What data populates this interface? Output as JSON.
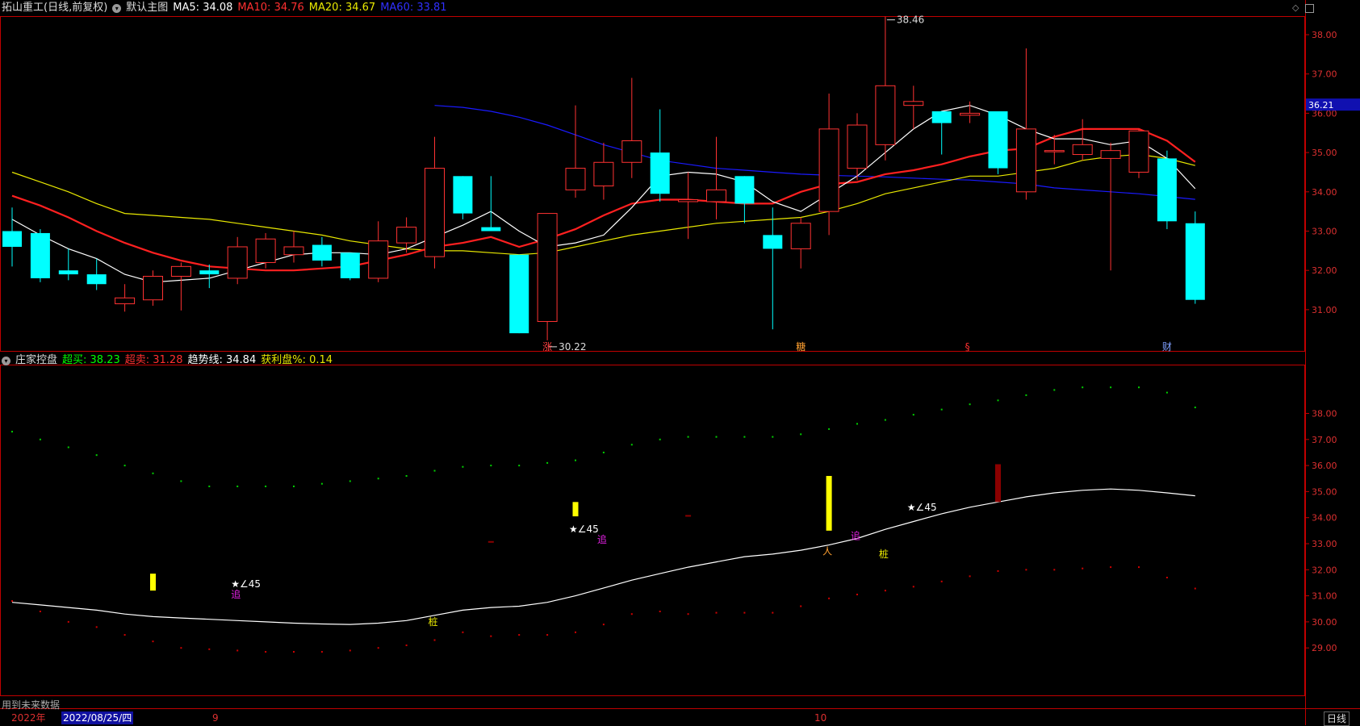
{
  "main_header": {
    "stock_title": "拓山重工(日线,前复权)",
    "overlay_name": "默认主图",
    "ma5": "MA5: 34.08",
    "ma10": "MA10: 34.76",
    "ma20": "MA20: 34.67",
    "ma60": "MA60: 33.81"
  },
  "sub_header": {
    "indicator_name": "庄家控盘",
    "overbuy": "超买: 38.23",
    "oversell": "超卖: 31.28",
    "trend": "趋势线: 34.84",
    "profit": "获利盘%: 0.14"
  },
  "colors": {
    "up": "#ff3232",
    "down": "#00ffff",
    "ma5": "#ffffff",
    "ma10": "#ff2020",
    "ma20": "#e8e800",
    "ma60": "#1a1aff",
    "frame": "#c00000",
    "axis_text": "#dd3030"
  },
  "price_axis": {
    "ticks": [
      "38.00",
      "37.00",
      "36.00",
      "35.00",
      "34.00",
      "33.00",
      "32.00",
      "31.00"
    ],
    "current_price": "36.21"
  },
  "sub_axis": {
    "ticks": [
      "38.00",
      "37.00",
      "36.00",
      "35.00",
      "34.00",
      "33.00",
      "32.00",
      "31.00",
      "30.00",
      "29.00"
    ]
  },
  "annotations": {
    "high_label": "38.46",
    "low_label": "30.22"
  },
  "event_markers": [
    "涨",
    "糖",
    "§",
    "财"
  ],
  "signal_labels": {
    "star": "★∠45",
    "chase": "追",
    "pile": "桩"
  },
  "bottom_bar": {
    "future_data_note": "用到未来数据",
    "year_label": "2022年",
    "cursor_date": "2022/08/25/四",
    "month_9": "9",
    "month_10": "10",
    "period_button": "日线"
  },
  "chart_data": {
    "type": "candlestick",
    "candles": [
      {
        "o": 33.0,
        "h": 33.6,
        "l": 32.1,
        "c": 32.6
      },
      {
        "o": 32.95,
        "h": 33.05,
        "l": 31.7,
        "c": 31.8
      },
      {
        "o": 32.0,
        "h": 32.55,
        "l": 31.75,
        "c": 31.9
      },
      {
        "o": 31.9,
        "h": 32.3,
        "l": 31.5,
        "c": 31.65
      },
      {
        "o": 31.15,
        "h": 31.65,
        "l": 30.95,
        "c": 31.3
      },
      {
        "o": 31.25,
        "h": 32.0,
        "l": 31.1,
        "c": 31.85
      },
      {
        "o": 31.85,
        "h": 32.2,
        "l": 30.98,
        "c": 32.1
      },
      {
        "o": 32.0,
        "h": 32.15,
        "l": 31.55,
        "c": 31.9
      },
      {
        "o": 31.8,
        "h": 32.85,
        "l": 31.65,
        "c": 32.6
      },
      {
        "o": 32.2,
        "h": 32.95,
        "l": 32.05,
        "c": 32.8
      },
      {
        "o": 32.4,
        "h": 33.0,
        "l": 32.2,
        "c": 32.6
      },
      {
        "o": 32.65,
        "h": 32.85,
        "l": 32.1,
        "c": 32.25
      },
      {
        "o": 32.45,
        "h": 32.45,
        "l": 31.75,
        "c": 31.8
      },
      {
        "o": 31.8,
        "h": 33.25,
        "l": 31.7,
        "c": 32.75
      },
      {
        "o": 32.7,
        "h": 33.35,
        "l": 32.45,
        "c": 33.1
      },
      {
        "o": 32.35,
        "h": 35.4,
        "l": 32.05,
        "c": 34.6
      },
      {
        "o": 34.4,
        "h": 34.4,
        "l": 33.3,
        "c": 33.45
      },
      {
        "o": 33.1,
        "h": 34.4,
        "l": 33.0,
        "c": 33.0
      },
      {
        "o": 32.4,
        "h": 32.4,
        "l": 30.4,
        "c": 30.4
      },
      {
        "o": 30.7,
        "h": 33.45,
        "l": 30.22,
        "c": 33.45
      },
      {
        "o": 34.05,
        "h": 36.2,
        "l": 33.85,
        "c": 34.6
      },
      {
        "o": 34.15,
        "h": 35.25,
        "l": 33.8,
        "c": 34.75
      },
      {
        "o": 34.75,
        "h": 36.9,
        "l": 34.35,
        "c": 35.3
      },
      {
        "o": 35.0,
        "h": 36.1,
        "l": 33.75,
        "c": 33.95
      },
      {
        "o": 33.75,
        "h": 34.5,
        "l": 32.8,
        "c": 33.8
      },
      {
        "o": 33.75,
        "h": 35.4,
        "l": 33.3,
        "c": 34.05
      },
      {
        "o": 34.4,
        "h": 34.4,
        "l": 33.2,
        "c": 33.7
      },
      {
        "o": 32.9,
        "h": 33.6,
        "l": 30.5,
        "c": 32.55
      },
      {
        "o": 32.55,
        "h": 33.35,
        "l": 32.05,
        "c": 33.2
      },
      {
        "o": 33.5,
        "h": 36.5,
        "l": 32.9,
        "c": 35.6
      },
      {
        "o": 34.6,
        "h": 36.0,
        "l": 34.3,
        "c": 35.7
      },
      {
        "o": 35.2,
        "h": 38.46,
        "l": 34.8,
        "c": 36.7
      },
      {
        "o": 36.2,
        "h": 36.7,
        "l": 35.6,
        "c": 36.3
      },
      {
        "o": 36.05,
        "h": 36.05,
        "l": 34.95,
        "c": 35.75
      },
      {
        "o": 35.95,
        "h": 36.3,
        "l": 35.75,
        "c": 36.0
      },
      {
        "o": 36.05,
        "h": 36.05,
        "l": 34.45,
        "c": 34.6
      },
      {
        "o": 34.0,
        "h": 37.65,
        "l": 33.8,
        "c": 35.6
      },
      {
        "o": 35.05,
        "h": 35.45,
        "l": 34.7,
        "c": 35.05
      },
      {
        "o": 34.95,
        "h": 35.85,
        "l": 34.8,
        "c": 35.2
      },
      {
        "o": 34.85,
        "h": 35.25,
        "l": 32.0,
        "c": 35.05
      },
      {
        "o": 34.5,
        "h": 35.6,
        "l": 34.35,
        "c": 35.55
      },
      {
        "o": 34.85,
        "h": 35.05,
        "l": 33.05,
        "c": 33.25
      },
      {
        "o": 33.2,
        "h": 33.5,
        "l": 31.15,
        "c": 31.25
      }
    ],
    "ma5": [
      33.3,
      32.9,
      32.55,
      32.3,
      31.9,
      31.7,
      31.75,
      31.8,
      32.0,
      32.2,
      32.4,
      32.45,
      32.45,
      32.4,
      32.55,
      32.85,
      33.15,
      33.5,
      33.0,
      32.6,
      32.7,
      32.9,
      33.6,
      34.4,
      34.5,
      34.45,
      34.25,
      33.75,
      33.5,
      33.95,
      34.4,
      35.0,
      35.6,
      36.05,
      36.2,
      35.95,
      35.6,
      35.35,
      35.35,
      35.2,
      35.3,
      34.85,
      34.08
    ],
    "ma10": [
      33.9,
      33.65,
      33.35,
      33.0,
      32.7,
      32.45,
      32.25,
      32.1,
      32.05,
      32.0,
      32.0,
      32.05,
      32.1,
      32.25,
      32.4,
      32.6,
      32.7,
      32.85,
      32.6,
      32.8,
      33.05,
      33.4,
      33.7,
      33.8,
      33.8,
      33.75,
      33.7,
      33.7,
      34.0,
      34.2,
      34.25,
      34.45,
      34.55,
      34.7,
      34.9,
      35.05,
      35.1,
      35.4,
      35.6,
      35.6,
      35.6,
      35.3,
      34.76
    ],
    "ma20": [
      34.5,
      34.25,
      34.0,
      33.7,
      33.45,
      33.4,
      33.35,
      33.3,
      33.2,
      33.1,
      33.0,
      32.9,
      32.75,
      32.65,
      32.55,
      32.5,
      32.5,
      32.45,
      32.4,
      32.45,
      32.6,
      32.75,
      32.9,
      33.0,
      33.1,
      33.2,
      33.25,
      33.3,
      33.35,
      33.5,
      33.7,
      33.95,
      34.1,
      34.25,
      34.4,
      34.4,
      34.5,
      34.6,
      34.8,
      34.9,
      34.95,
      34.85,
      34.67
    ],
    "ma60": [
      null,
      null,
      null,
      null,
      null,
      null,
      null,
      null,
      null,
      null,
      null,
      null,
      null,
      null,
      null,
      36.2,
      36.15,
      36.05,
      35.9,
      35.7,
      35.45,
      35.2,
      35.0,
      34.8,
      34.7,
      34.6,
      34.55,
      34.5,
      34.45,
      34.42,
      34.4,
      34.38,
      34.35,
      34.32,
      34.3,
      34.25,
      34.2,
      34.1,
      34.05,
      34.0,
      33.95,
      33.88,
      33.81
    ],
    "overbuy": [
      37.3,
      37.0,
      36.7,
      36.4,
      36.0,
      35.7,
      35.4,
      35.2,
      35.2,
      35.2,
      35.2,
      35.3,
      35.4,
      35.5,
      35.6,
      35.8,
      35.95,
      36.0,
      36.0,
      36.1,
      36.2,
      36.5,
      36.8,
      37.0,
      37.1,
      37.1,
      37.1,
      37.1,
      37.2,
      37.4,
      37.6,
      37.75,
      37.95,
      38.15,
      38.35,
      38.5,
      38.7,
      38.9,
      39.0,
      39.0,
      39.0,
      38.8,
      38.23
    ],
    "oversell": [
      30.8,
      30.4,
      30.0,
      29.8,
      29.5,
      29.25,
      29.0,
      28.95,
      28.9,
      28.85,
      28.85,
      28.85,
      28.9,
      29.0,
      29.1,
      29.3,
      29.6,
      29.45,
      29.5,
      29.5,
      29.6,
      29.9,
      30.3,
      30.4,
      30.3,
      30.35,
      30.35,
      30.35,
      30.6,
      30.9,
      31.05,
      31.2,
      31.35,
      31.55,
      31.75,
      31.95,
      32.0,
      32.0,
      32.05,
      32.1,
      32.1,
      31.7,
      31.28
    ],
    "trend": [
      30.75,
      30.65,
      30.55,
      30.45,
      30.3,
      30.2,
      30.15,
      30.1,
      30.05,
      30.0,
      29.95,
      29.92,
      29.9,
      29.95,
      30.05,
      30.25,
      30.45,
      30.55,
      30.6,
      30.75,
      31.0,
      31.3,
      31.6,
      31.85,
      32.1,
      32.3,
      32.5,
      32.6,
      32.75,
      32.95,
      33.2,
      33.55,
      33.85,
      34.15,
      34.4,
      34.6,
      34.8,
      34.95,
      35.05,
      35.1,
      35.05,
      34.95,
      34.84
    ],
    "control_bars": [
      {
        "i": 5,
        "from": 31.2,
        "to": 31.85,
        "kind": "yellow"
      },
      {
        "i": 20,
        "from": 34.05,
        "to": 34.6,
        "kind": "yellow"
      },
      {
        "i": 29,
        "from": 33.5,
        "to": 35.6,
        "kind": "yellow"
      },
      {
        "i": 35,
        "from": 34.6,
        "to": 36.05,
        "kind": "dark"
      },
      {
        "i": 17,
        "from": 33.05,
        "to": 33.1,
        "kind": "dark"
      },
      {
        "i": 24,
        "from": 34.05,
        "to": 34.1,
        "kind": "dark"
      }
    ],
    "signals": [
      {
        "i": 8,
        "y": 31.45,
        "type": "star"
      },
      {
        "i": 8,
        "y": 31.05,
        "type": "chase"
      },
      {
        "i": 20,
        "y": 33.55,
        "type": "star"
      },
      {
        "i": 21,
        "y": 33.15,
        "type": "chase"
      },
      {
        "i": 15,
        "y": 30.0,
        "type": "pile"
      },
      {
        "i": 32,
        "y": 34.4,
        "type": "star"
      },
      {
        "i": 30,
        "y": 33.3,
        "type": "chase"
      },
      {
        "i": 31,
        "y": 32.6,
        "type": "pile"
      },
      {
        "i": 29,
        "y": 32.7,
        "type": "person"
      }
    ]
  }
}
